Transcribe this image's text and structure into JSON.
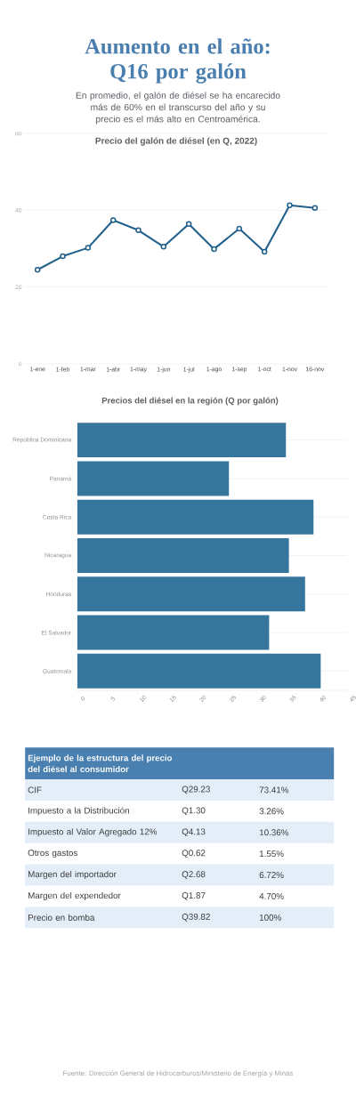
{
  "chart_data": [
    {
      "type": "other",
      "title": "Aumento en el año: Q16 por galón",
      "subtitle": "En promedio, el galón de diésel se ha encarecido más de 60% en el transcurso del año y su precio es el más alto en Centroamérica."
    },
    {
      "type": "line",
      "title": "Precio del galón de diésel (en Q, 2022)",
      "categories": [
        "1-ene",
        "1-feb",
        "1-mar",
        "1-abr",
        "1-may",
        "1-jun",
        "1-jul",
        "1-ago",
        "1-sep",
        "1-oct",
        "1-nov",
        "16-nov"
      ],
      "values": [
        24.5,
        28.0,
        30.2,
        37.4,
        34.8,
        30.5,
        36.4,
        29.9,
        35.2,
        29.2,
        41.3,
        40.6
      ],
      "color": "#22618c",
      "ylim": [
        0,
        60
      ],
      "yticks": [
        0,
        20,
        40,
        60
      ],
      "grid": "y",
      "marker": "circle",
      "line_style": "solid"
    },
    {
      "type": "bar",
      "orientation": "horizontal",
      "title": "Precios del diésel en la región (Q por galón)",
      "categories": [
        "República Dominicana",
        "Panamá",
        "Costa Rica",
        "Nicaragua",
        "Honduras",
        "El Salvador",
        "Guatemala"
      ],
      "values": [
        34.8,
        25.3,
        39.4,
        35.3,
        38.0,
        32.0,
        40.6
      ],
      "color": "#36769c",
      "xlim": [
        0,
        45
      ],
      "xticks": [
        0,
        5,
        10,
        15,
        20,
        25,
        30,
        35,
        40,
        45
      ],
      "grid": "y"
    },
    {
      "type": "other",
      "title": "Ejemplo de la estructura del precio del diésel al consumidor",
      "annotations": [
        "CIF",
        "Q29.23",
        "73.41%",
        "Impuesto a la Distribución",
        "Q1.30",
        "3.26%",
        "Impuesto al Valor Agregado 12%",
        "Q4.13",
        "10.36%",
        "Otros gastos",
        "Q0.62",
        "1.55%",
        "Margen del importador",
        "Q2.68",
        "6.72%",
        "Margen del expendedor",
        "Q1.87",
        "4.70%",
        "Precio en bomba",
        "Q39.82",
        "100%"
      ]
    },
    {
      "type": "other",
      "annotations": [
        "Fuente: Dirección General de Hidrocarburos/Ministerio de Energía y Minas"
      ]
    }
  ]
}
